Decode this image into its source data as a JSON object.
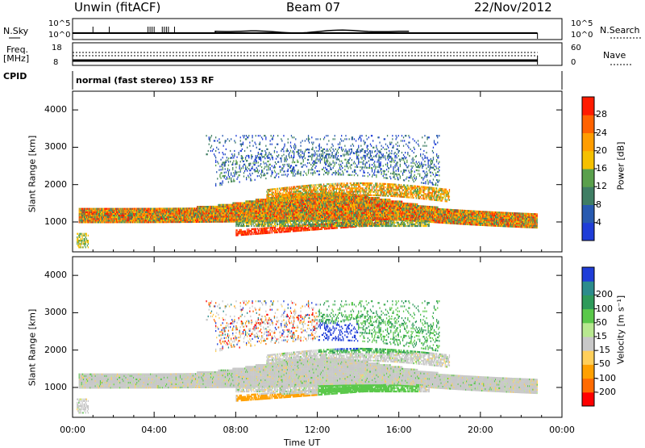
{
  "header": {
    "station": "Unwin (fitACF)",
    "beam": "Beam 07",
    "date": "22/Nov/2012"
  },
  "panels": {
    "nsky": {
      "label": "N.Sky",
      "tick_top": "10^5",
      "tick_bottom": "10^0",
      "right_tick_top": "10^5",
      "right_tick_bottom": "10^0",
      "right_label": "N.Search"
    },
    "freq": {
      "label_line1": "Freq.",
      "label_line2": "[MHz]",
      "tick_top": "18",
      "tick_bottom": "8",
      "right_tick_top": "60",
      "right_tick_bottom": "0",
      "right_label": "Nave"
    },
    "cpid": {
      "label": "CPID",
      "value": "normal (fast stereo) 153 RF"
    }
  },
  "colors": {
    "power": [
      "#1f3dd8",
      "#285ab0",
      "#3f7e64",
      "#5aa04c",
      "#f5c000",
      "#ff9d00",
      "#ff6200",
      "#ff1b00"
    ],
    "velocity": [
      "#ff0000",
      "#ff6a00",
      "#ffa000",
      "#ffcf5a",
      "#c8c8c8",
      "#b8e890",
      "#5ac84a",
      "#2e9a5a",
      "#2c8c8c",
      "#1f3dd8"
    ]
  },
  "chart_data": [
    {
      "type": "heatmap",
      "title": "",
      "ylabel": "Slant Range [km]",
      "xlabel": "",
      "x_ticks": [
        "00:00",
        "04:00",
        "08:00",
        "12:00",
        "16:00",
        "20:00",
        "00:00"
      ],
      "xlim_hours": [
        0,
        24
      ],
      "y_ticks": [
        1000,
        2000,
        3000,
        4000
      ],
      "ylim": [
        200,
        4500
      ],
      "colorbar": {
        "label": "Power [dB]",
        "ticks": [
          4,
          8,
          12,
          16,
          20,
          24,
          28
        ],
        "range": [
          0,
          32
        ]
      },
      "data_end_hour": 22.8
    },
    {
      "type": "heatmap",
      "title": "",
      "ylabel": "Slant Range [km]",
      "xlabel": "Time UT",
      "x_ticks": [
        "00:00",
        "04:00",
        "08:00",
        "12:00",
        "16:00",
        "20:00",
        "00:00"
      ],
      "xlim_hours": [
        0,
        24
      ],
      "y_ticks": [
        1000,
        2000,
        3000,
        4000
      ],
      "ylim": [
        200,
        4500
      ],
      "colorbar": {
        "label": "Velocity [m s⁻¹]",
        "ticks": [
          "-200",
          "-100",
          "-50",
          "-15",
          "15",
          "50",
          "100",
          "200"
        ]
      },
      "data_end_hour": 22.8
    }
  ]
}
